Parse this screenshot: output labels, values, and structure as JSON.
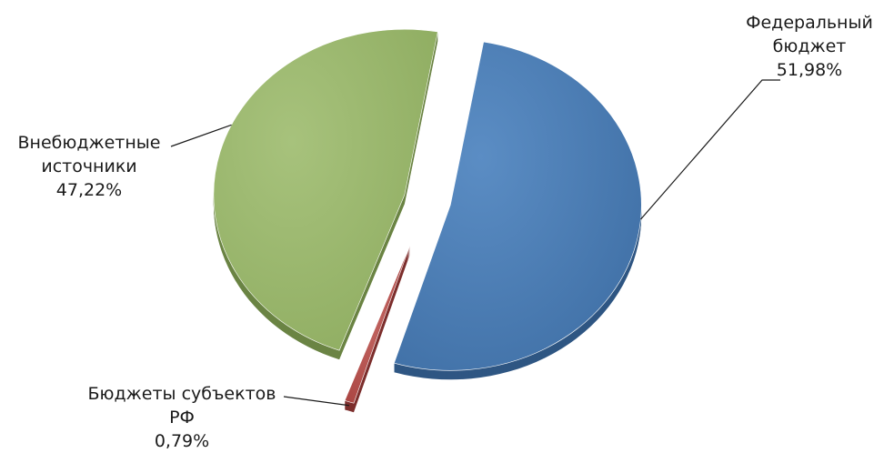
{
  "chart_data": {
    "type": "pie",
    "style": "3d-exploded",
    "slices": [
      {
        "name": "Федеральный бюджет",
        "label_lines": [
          "Федеральный",
          "бюджет"
        ],
        "value": 51.98,
        "value_label": "51,98%",
        "color": "#4a7ab0"
      },
      {
        "name": "Бюджеты субъектов РФ",
        "label_lines": [
          "Бюджеты субъектов",
          "РФ"
        ],
        "value": 0.79,
        "value_label": "0,79%",
        "color": "#b5504d"
      },
      {
        "name": "Внебюджетные источники",
        "label_lines": [
          "Внебюджетные",
          "источники"
        ],
        "value": 47.22,
        "value_label": "47,22%",
        "color": "#97b56a"
      }
    ],
    "legend": "none"
  }
}
